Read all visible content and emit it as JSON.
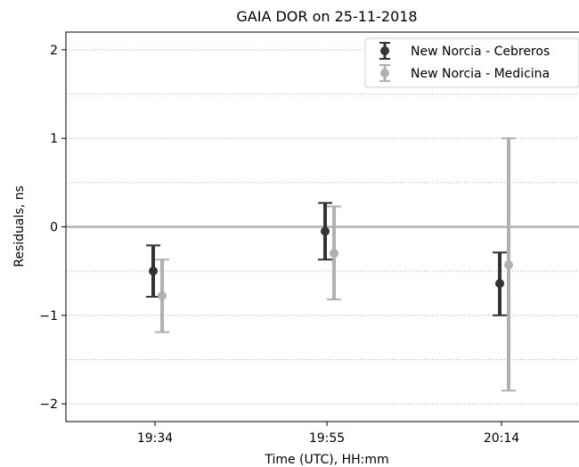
{
  "chart_data": {
    "type": "errorbar",
    "title": "GAIA DOR on 25-11-2018",
    "xlabel": "Time (UTC), HH:mm",
    "ylabel": "Residuals, ns",
    "categories": [
      "19:34",
      "19:55",
      "20:14"
    ],
    "ylim": [
      -2.2,
      2.2
    ],
    "yticks": [
      2,
      1,
      0,
      -1,
      -2
    ],
    "ytick_labels": [
      "2",
      "1",
      "0",
      "−1",
      "−2"
    ],
    "grid": "horizontal dotted",
    "zero_line": 0,
    "legend_position": "top-right",
    "series": [
      {
        "name": "New Norcia - Cebreros",
        "color": "#333333",
        "values": [
          -0.5,
          -0.05,
          -0.64
        ],
        "lower": [
          -0.79,
          -0.37,
          -1.0
        ],
        "upper": [
          -0.21,
          0.27,
          -0.29
        ]
      },
      {
        "name": "New Norcia - Medicina",
        "color": "#b0b0b0",
        "values": [
          -0.78,
          -0.3,
          -0.43
        ],
        "lower": [
          -1.19,
          -0.82,
          -1.85
        ],
        "upper": [
          -0.37,
          0.23,
          1.0
        ]
      }
    ]
  }
}
